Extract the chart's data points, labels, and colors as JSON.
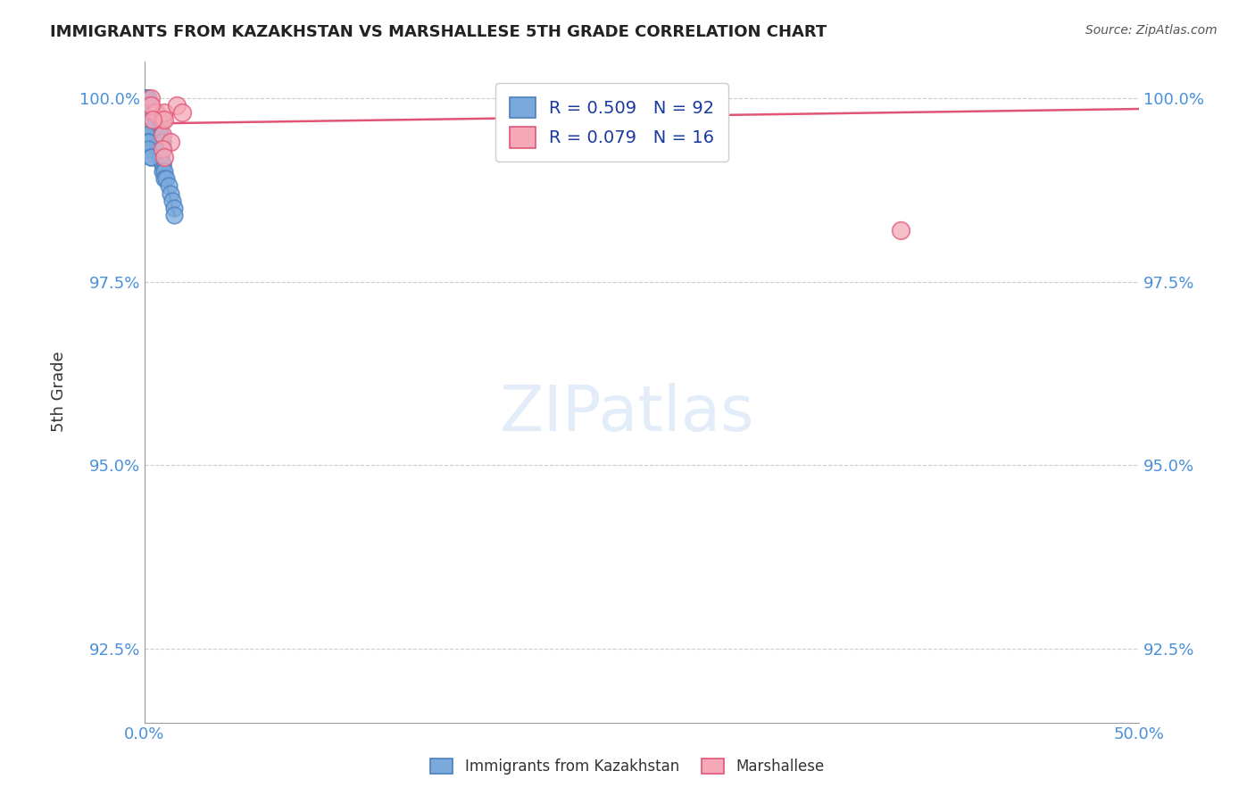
{
  "title": "IMMIGRANTS FROM KAZAKHSTAN VS MARSHALLESE 5TH GRADE CORRELATION CHART",
  "source": "Source: ZipAtlas.com",
  "xlabel": "",
  "ylabel": "5th Grade",
  "xlim": [
    0.0,
    0.5
  ],
  "ylim": [
    0.915,
    1.005
  ],
  "xtick_labels": [
    "0.0%",
    "50.0%"
  ],
  "xtick_positions": [
    0.0,
    0.5
  ],
  "ytick_labels": [
    "92.5%",
    "95.0%",
    "97.5%",
    "100.0%"
  ],
  "ytick_positions": [
    0.925,
    0.95,
    0.975,
    1.0
  ],
  "legend_entries": [
    {
      "label": "R = 0.509   N = 92",
      "color": "#a8c4e8"
    },
    {
      "label": "R = 0.079   N = 16",
      "color": "#f4a8b8"
    }
  ],
  "blue_scatter": {
    "color": "#7aaadc",
    "edgecolor": "#4a7fbf",
    "x": [
      0.001,
      0.001,
      0.001,
      0.001,
      0.001,
      0.002,
      0.002,
      0.002,
      0.002,
      0.002,
      0.002,
      0.003,
      0.003,
      0.003,
      0.003,
      0.003,
      0.003,
      0.004,
      0.004,
      0.004,
      0.004,
      0.005,
      0.005,
      0.005,
      0.006,
      0.006,
      0.006,
      0.007,
      0.007,
      0.008,
      0.008,
      0.009,
      0.009,
      0.009,
      0.01,
      0.01,
      0.011,
      0.012,
      0.013,
      0.014,
      0.015,
      0.015,
      0.001,
      0.001,
      0.001,
      0.001,
      0.001,
      0.002,
      0.002,
      0.002,
      0.001,
      0.002,
      0.003,
      0.003,
      0.003,
      0.003,
      0.004,
      0.004,
      0.004,
      0.005,
      0.005,
      0.005,
      0.006,
      0.006,
      0.007,
      0.007,
      0.008,
      0.008,
      0.009,
      0.009,
      0.001,
      0.002,
      0.002,
      0.002,
      0.003,
      0.003,
      0.003,
      0.004,
      0.004,
      0.004,
      0.001,
      0.001,
      0.001,
      0.001,
      0.001,
      0.001,
      0.001,
      0.002,
      0.002,
      0.002,
      0.003,
      0.003
    ],
    "y": [
      1.0,
      0.999,
      0.999,
      0.998,
      0.998,
      0.999,
      0.999,
      0.998,
      0.998,
      0.997,
      0.997,
      0.998,
      0.998,
      0.997,
      0.997,
      0.996,
      0.996,
      0.997,
      0.997,
      0.996,
      0.996,
      0.996,
      0.995,
      0.995,
      0.995,
      0.994,
      0.994,
      0.993,
      0.993,
      0.992,
      0.992,
      0.991,
      0.991,
      0.99,
      0.99,
      0.989,
      0.989,
      0.988,
      0.987,
      0.986,
      0.985,
      0.984,
      1.0,
      1.0,
      1.0,
      0.999,
      0.999,
      1.0,
      0.999,
      0.999,
      0.998,
      0.998,
      0.999,
      0.998,
      0.998,
      0.997,
      0.998,
      0.997,
      0.997,
      0.997,
      0.996,
      0.996,
      0.996,
      0.995,
      0.996,
      0.995,
      0.995,
      0.994,
      0.994,
      0.993,
      1.0,
      1.0,
      0.999,
      0.999,
      0.999,
      0.998,
      0.998,
      0.997,
      0.997,
      0.997,
      0.999,
      0.998,
      0.998,
      0.997,
      0.997,
      0.996,
      0.995,
      0.994,
      0.994,
      0.993,
      0.992,
      0.992
    ]
  },
  "pink_scatter": {
    "color": "#f4a8b8",
    "edgecolor": "#e05575",
    "x": [
      0.003,
      0.005,
      0.006,
      0.009,
      0.009,
      0.01,
      0.01,
      0.013,
      0.016,
      0.019,
      0.21,
      0.38,
      0.003,
      0.004,
      0.009,
      0.01
    ],
    "y": [
      1.0,
      0.998,
      0.998,
      0.997,
      0.995,
      0.998,
      0.997,
      0.994,
      0.999,
      0.998,
      0.998,
      0.982,
      0.999,
      0.997,
      0.993,
      0.992
    ]
  },
  "trendline_blue": {
    "color": "#1a3a6b",
    "x": [
      0.001,
      0.015
    ],
    "y": [
      0.9995,
      0.984
    ]
  },
  "trendline_pink": {
    "color": "#e05575",
    "x": [
      0.0,
      0.5
    ],
    "y": [
      0.9965,
      0.9985
    ]
  },
  "background_color": "#ffffff",
  "grid_color": "#cccccc",
  "title_color": "#222222",
  "source_color": "#555555",
  "axis_color": "#999999",
  "tick_color": "#4a90d9",
  "ylabel_color": "#333333"
}
